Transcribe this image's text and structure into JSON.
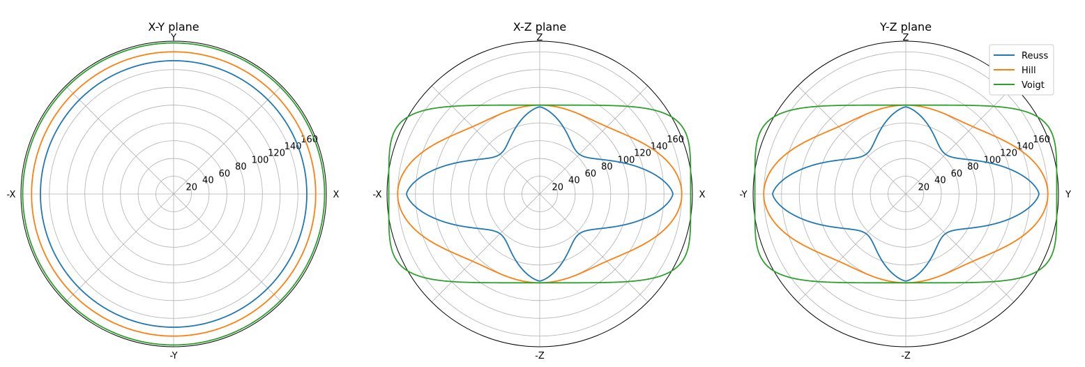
{
  "legend": {
    "position": "upper-right",
    "entries": [
      {
        "name": "Reuss",
        "color": "#1f77b4"
      },
      {
        "name": "Hill",
        "color": "#ff7f0e"
      },
      {
        "name": "Voigt",
        "color": "#2ca02c"
      }
    ]
  },
  "chart_data": [
    {
      "type": "polar-line",
      "title": "X-Y plane",
      "direction_labels": {
        "right": "X",
        "top": "Y",
        "left": "-X",
        "bottom": "-Y"
      },
      "radial_ticks": [
        20,
        40,
        60,
        80,
        100,
        120,
        140,
        160
      ],
      "rmax": 172,
      "grid": true,
      "series": [
        {
          "name": "Reuss",
          "color": "#1f77b4",
          "r_horizontal": 150,
          "r_vertical": 150,
          "shape": "circle"
        },
        {
          "name": "Hill",
          "color": "#ff7f0e",
          "r_horizontal": 160,
          "r_vertical": 160,
          "shape": "circle"
        },
        {
          "name": "Voigt",
          "color": "#2ca02c",
          "r_horizontal": 170,
          "r_vertical": 170,
          "shape": "circle"
        }
      ]
    },
    {
      "type": "polar-line",
      "title": "X-Z plane",
      "direction_labels": {
        "right": "X",
        "top": "Z",
        "left": "-X",
        "bottom": "-Z"
      },
      "radial_ticks": [
        20,
        40,
        60,
        80,
        100,
        120,
        140,
        160
      ],
      "rmax": 172,
      "grid": true,
      "series": [
        {
          "name": "Reuss",
          "color": "#1f77b4",
          "r_horizontal": 150,
          "r_vertical": 98,
          "shape": "reuss"
        },
        {
          "name": "Hill",
          "color": "#ff7f0e",
          "r_horizontal": 160,
          "r_vertical": 100,
          "shape": "hill"
        },
        {
          "name": "Voigt",
          "color": "#2ca02c",
          "r_horizontal": 170,
          "r_vertical": 100,
          "shape": "voigt"
        }
      ]
    },
    {
      "type": "polar-line",
      "title": "Y-Z plane",
      "direction_labels": {
        "right": "Y",
        "top": "Z",
        "left": "-Y",
        "bottom": "-Z"
      },
      "radial_ticks": [
        20,
        40,
        60,
        80,
        100,
        120,
        140,
        160
      ],
      "rmax": 172,
      "grid": true,
      "series": [
        {
          "name": "Reuss",
          "color": "#1f77b4",
          "r_horizontal": 150,
          "r_vertical": 98,
          "shape": "reuss"
        },
        {
          "name": "Hill",
          "color": "#ff7f0e",
          "r_horizontal": 160,
          "r_vertical": 100,
          "shape": "hill"
        },
        {
          "name": "Voigt",
          "color": "#2ca02c",
          "r_horizontal": 170,
          "r_vertical": 100,
          "shape": "voigt"
        }
      ]
    }
  ]
}
